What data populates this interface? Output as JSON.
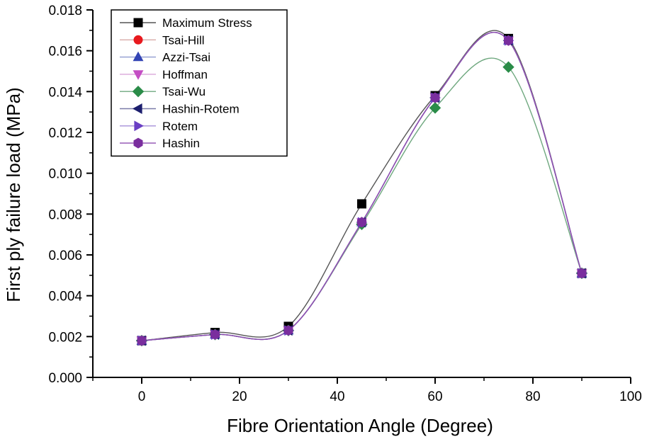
{
  "chart_data": {
    "type": "line",
    "title": "",
    "xlabel": "Fibre Orientation Angle (Degree)",
    "ylabel": "First ply failure load (MPa)",
    "xlim": [
      -10,
      100
    ],
    "ylim": [
      0,
      0.018
    ],
    "xticks": [
      0,
      20,
      40,
      60,
      80,
      100
    ],
    "xtick_labels": [
      "0",
      "20",
      "40",
      "60",
      "80",
      "100"
    ],
    "yticks": [
      0,
      0.002,
      0.004,
      0.006,
      0.008,
      0.01,
      0.012,
      0.014,
      0.016,
      0.018
    ],
    "ytick_labels": [
      "0.000",
      "0.002",
      "0.004",
      "0.006",
      "0.008",
      "0.010",
      "0.012",
      "0.014",
      "0.016",
      "0.018"
    ],
    "grid": false,
    "legend_position": "top-left",
    "x": [
      0,
      15,
      30,
      45,
      60,
      75,
      90
    ],
    "series": [
      {
        "name": "Maximum Stress",
        "marker": "square",
        "color": "#000000",
        "line_color": "#555555",
        "values": [
          0.0018,
          0.0022,
          0.0025,
          0.0085,
          0.0138,
          0.0166,
          0.0051
        ]
      },
      {
        "name": "Tsai-Hill",
        "marker": "circle",
        "color": "#e8191e",
        "line_color": "#d9aaa6",
        "values": [
          0.0018,
          0.0021,
          0.0023,
          0.0076,
          0.0137,
          0.0165,
          0.0051
        ]
      },
      {
        "name": "Azzi-Tsai",
        "marker": "triangle-up",
        "color": "#3344b4",
        "line_color": "#8f9bd0",
        "values": [
          0.0018,
          0.0021,
          0.0023,
          0.0076,
          0.0137,
          0.0165,
          0.0051
        ]
      },
      {
        "name": "Hoffman",
        "marker": "triangle-down",
        "color": "#c44ec4",
        "line_color": "#d9a6d9",
        "values": [
          0.0018,
          0.0021,
          0.0023,
          0.0076,
          0.0137,
          0.0165,
          0.0051
        ]
      },
      {
        "name": "Tsai-Wu",
        "marker": "diamond",
        "color": "#2a8c48",
        "line_color": "#6fa87f",
        "values": [
          0.0018,
          0.0021,
          0.0023,
          0.0075,
          0.0132,
          0.0152,
          0.0051
        ]
      },
      {
        "name": "Hashin-Rotem",
        "marker": "triangle-left",
        "color": "#1c1f6e",
        "line_color": "#7a7ca8",
        "values": [
          0.0018,
          0.0021,
          0.0023,
          0.0076,
          0.0137,
          0.0165,
          0.0051
        ]
      },
      {
        "name": "Rotem",
        "marker": "triangle-right",
        "color": "#6a3fc4",
        "line_color": "#a58fd8",
        "values": [
          0.0018,
          0.0021,
          0.0023,
          0.0076,
          0.0137,
          0.0165,
          0.0051
        ]
      },
      {
        "name": "Hashin",
        "marker": "hexagon",
        "color": "#7a2e9e",
        "line_color": "#8d4db0",
        "values": [
          0.0018,
          0.0021,
          0.0023,
          0.0076,
          0.0137,
          0.0165,
          0.0051
        ]
      }
    ]
  }
}
